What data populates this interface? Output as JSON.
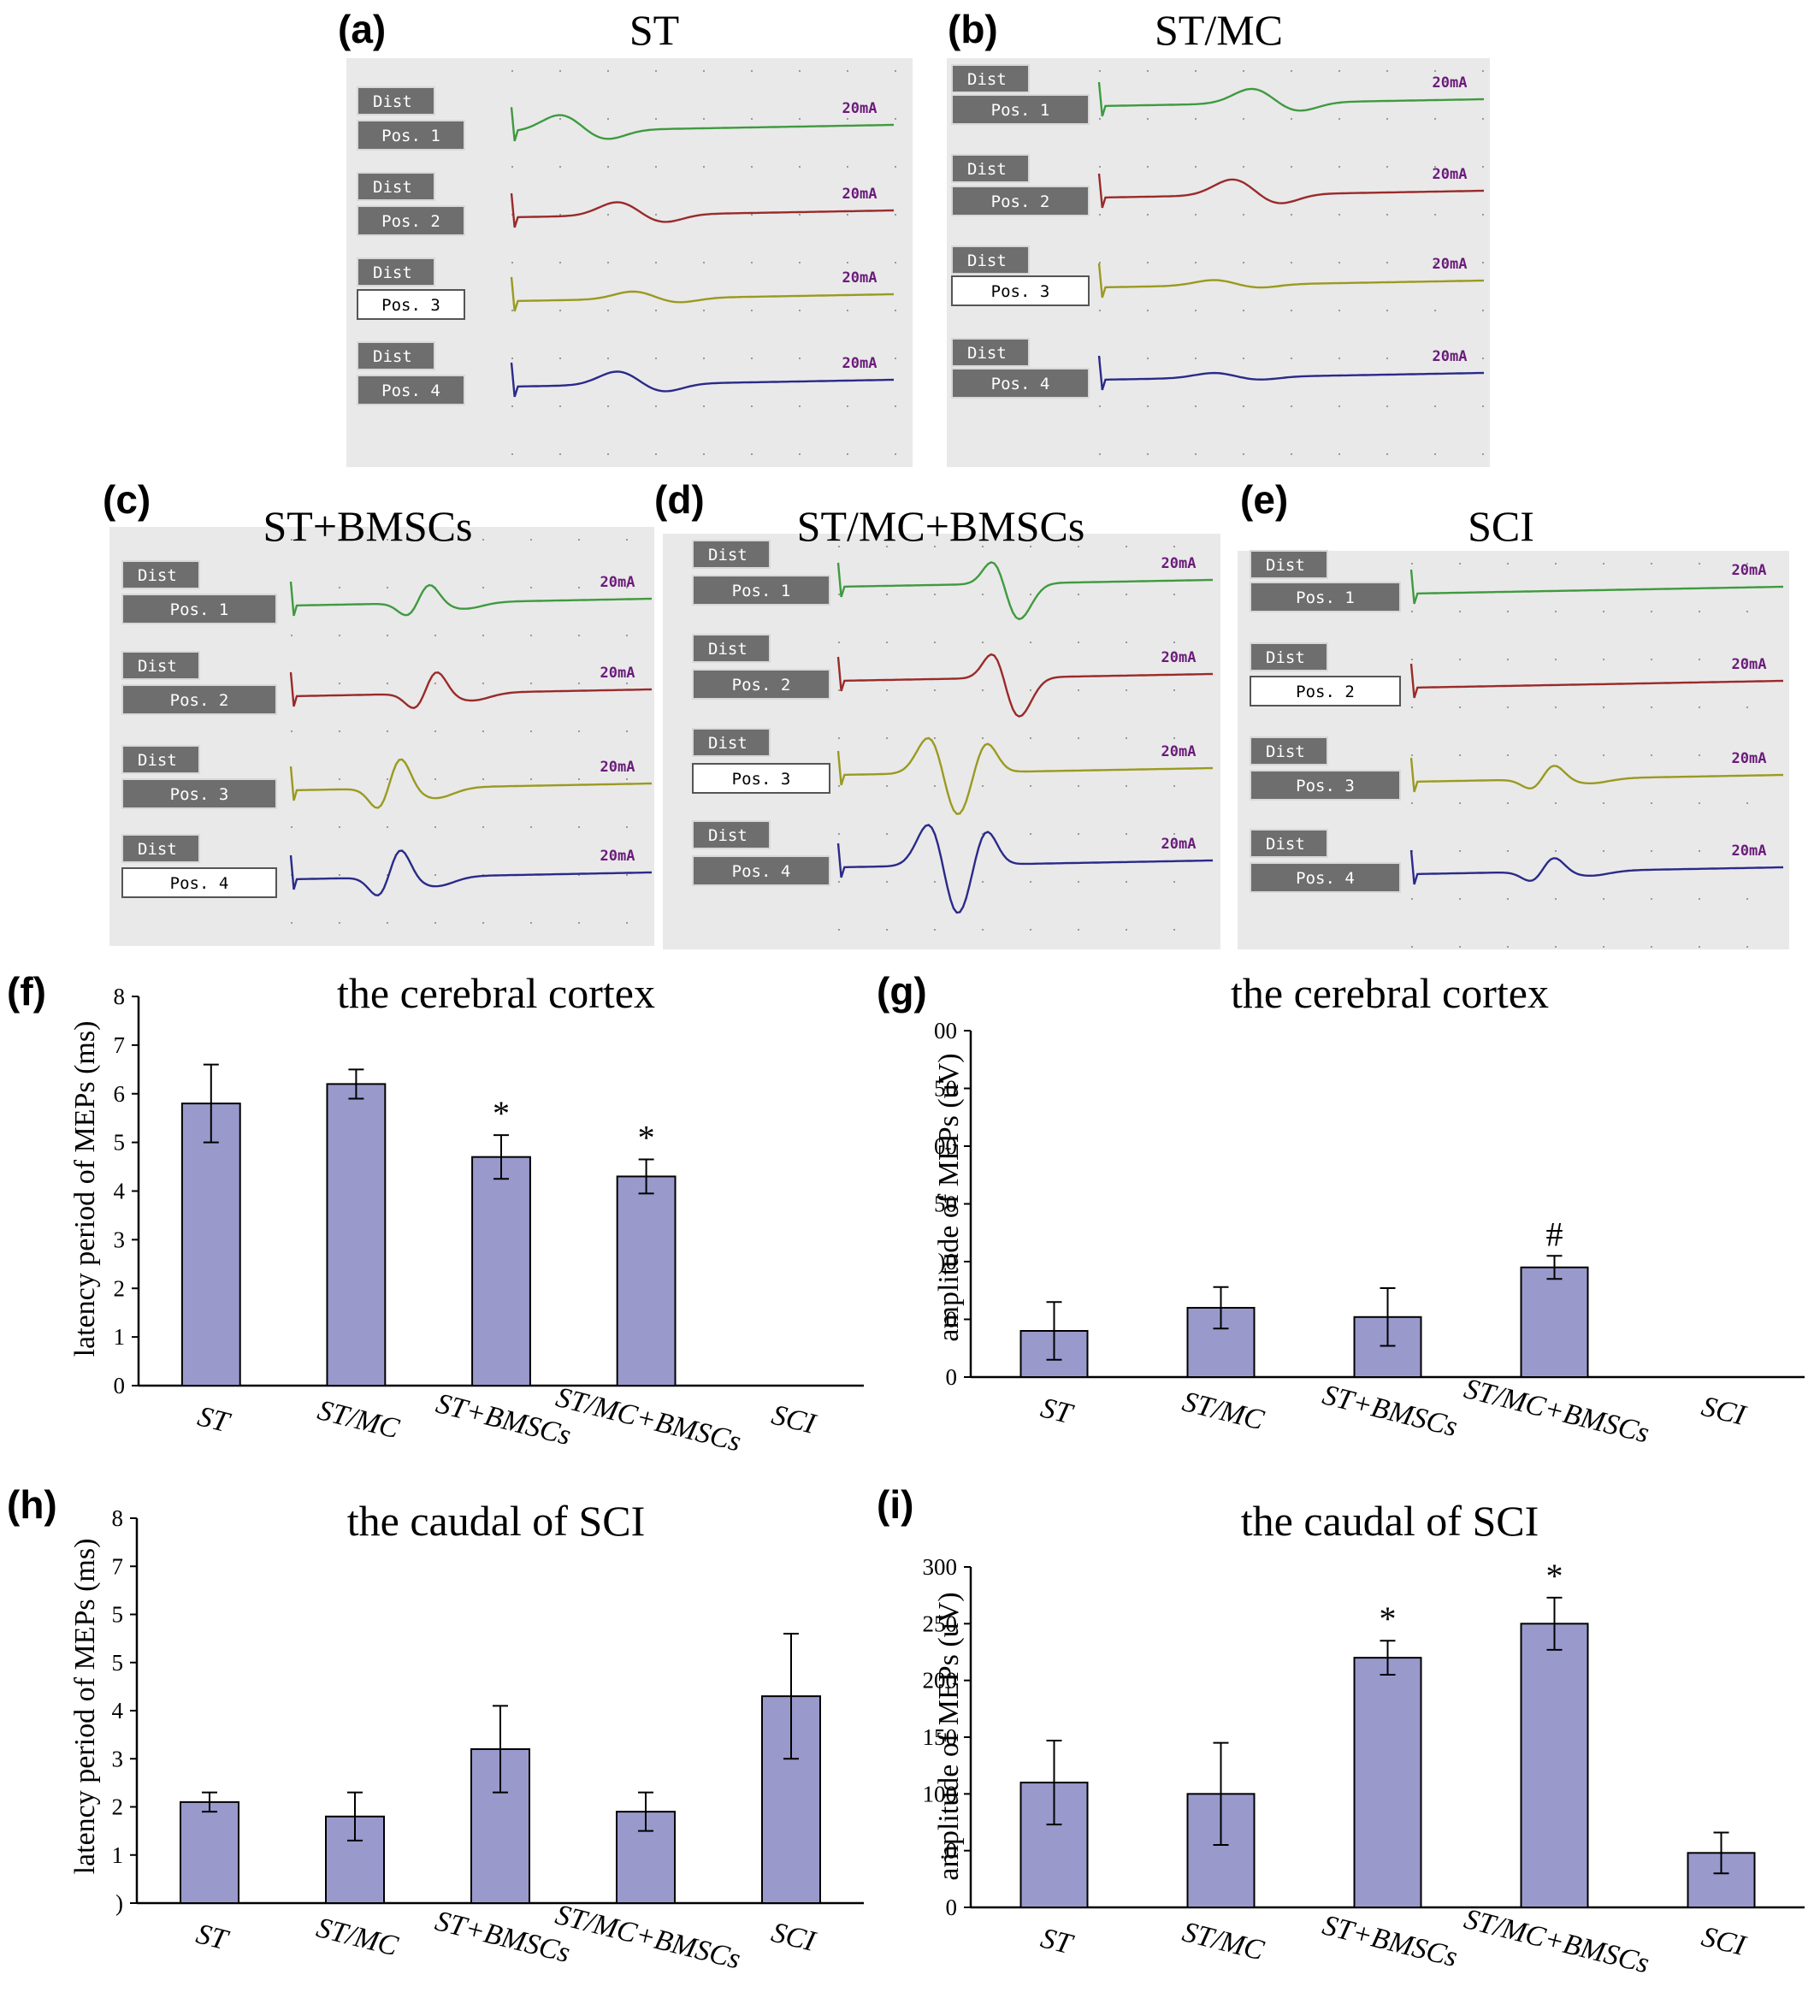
{
  "traces": {
    "button_dist": "Dist",
    "button_pos": [
      "Pos. 1",
      "Pos. 2",
      "Pos. 3",
      "Pos. 4"
    ],
    "stim_label": "20mA",
    "trace_colors": [
      "#3f9a3f",
      "#9a2a2a",
      "#9a9a20",
      "#2a2a8a"
    ],
    "panels": [
      {
        "label": "(a)",
        "title": "ST",
        "highlighted_pos": 3
      },
      {
        "label": "(b)",
        "title": "ST/MC",
        "highlighted_pos": 3
      },
      {
        "label": "(c)",
        "title": "ST+BMSCs",
        "highlighted_pos": 4
      },
      {
        "label": "(d)",
        "title": "ST/MC+BMSCs",
        "highlighted_pos": 3
      },
      {
        "label": "(e)",
        "title": "SCI",
        "highlighted_pos": 2
      }
    ]
  },
  "chart_data": [
    {
      "id": "f",
      "label": "(f)",
      "type": "bar",
      "title": "the cerebral cortex",
      "ylabel": "latency period of MEPs (ms)",
      "xlabel": "",
      "categories": [
        "ST",
        "ST/MC",
        "ST+BMSCs",
        "ST/MC+BMSCs",
        "SCI"
      ],
      "values": [
        5.8,
        6.2,
        4.7,
        4.3,
        0
      ],
      "errors": [
        0.8,
        0.3,
        0.45,
        0.35,
        0
      ],
      "annotations": [
        "",
        "",
        "*",
        "*",
        ""
      ],
      "ylim": [
        0,
        8
      ],
      "ticks": [
        "0",
        "1",
        "2",
        "3",
        "4",
        "5",
        "6",
        "7",
        "8"
      ],
      "bar_color": "#9999cc",
      "grid": false
    },
    {
      "id": "g",
      "label": "(g)",
      "type": "bar",
      "title": "the cerebral cortex",
      "ylabel": "amplitude of MEPs (uV)",
      "xlabel": "",
      "categories": [
        "ST",
        "ST/MC",
        "ST+BMSCs",
        "ST/MC+BMSCs",
        "SCI"
      ],
      "values": [
        40,
        60,
        52,
        95,
        0
      ],
      "errors": [
        25,
        18,
        25,
        10,
        0
      ],
      "annotations": [
        "",
        "",
        "",
        "#",
        ""
      ],
      "ylim": [
        0,
        300
      ],
      "ticks": [
        "0",
        "0",
        ")0",
        "50",
        "00",
        "50",
        "00"
      ],
      "bar_color": "#9999cc",
      "grid": false
    },
    {
      "id": "h",
      "label": "(h)",
      "type": "bar",
      "title": "the caudal of SCI",
      "ylabel": "latency period of MEPs (ms)",
      "xlabel": "",
      "categories": [
        "ST",
        "ST/MC",
        "ST+BMSCs",
        "ST/MC+BMSCs",
        "SCI"
      ],
      "values": [
        2.1,
        1.8,
        3.2,
        1.9,
        4.3
      ],
      "errors": [
        0.2,
        0.5,
        0.9,
        0.4,
        1.3
      ],
      "annotations": [
        "",
        "",
        "",
        "",
        ""
      ],
      "ylim": [
        0,
        8
      ],
      "ticks": [
        ")",
        "1",
        "2",
        "3",
        "4",
        "5",
        "5",
        "7",
        "8"
      ],
      "bar_color": "#9999cc",
      "grid": false
    },
    {
      "id": "i",
      "label": "(i)",
      "type": "bar",
      "title": "the caudal of SCI",
      "ylabel": "amplitude of MEPs (uV)",
      "xlabel": "",
      "categories": [
        "ST",
        "ST/MC",
        "ST+BMSCs",
        "ST/MC+BMSCs",
        "SCI"
      ],
      "values": [
        110,
        100,
        220,
        250,
        48
      ],
      "errors": [
        37,
        45,
        15,
        23,
        18
      ],
      "annotations": [
        "",
        "",
        "*",
        "*",
        ""
      ],
      "ylim": [
        0,
        300
      ],
      "ticks": [
        "0",
        ".0",
        "100",
        "150",
        "200",
        "250",
        "300"
      ],
      "bar_color": "#9999cc",
      "grid": false
    }
  ]
}
